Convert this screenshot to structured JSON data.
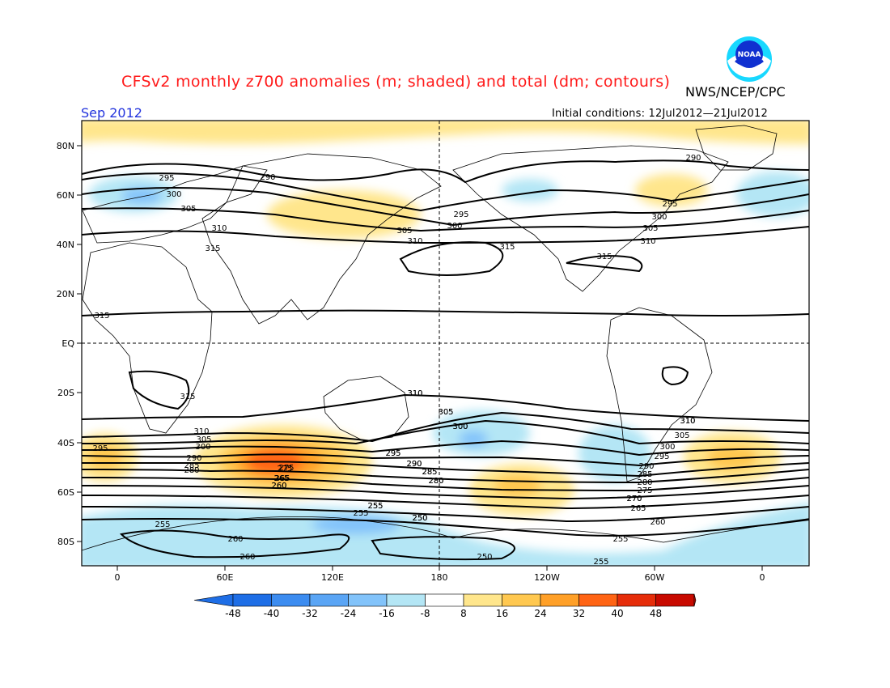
{
  "header": {
    "title": "CFSv2 monthly z700 anomalies (m; shaded) and total (dm; contours)",
    "agency": "NWS/NCEP/CPC",
    "month": "Sep 2012",
    "initial_conditions": "Initial conditions: 12Jul2012—21Jul2012",
    "logo_text": "NOAA"
  },
  "axes": {
    "lat_labels": [
      "80N",
      "60N",
      "40N",
      "20N",
      "EQ",
      "20S",
      "40S",
      "60S",
      "80S"
    ],
    "lon_labels": [
      "0",
      "60E",
      "120E",
      "180",
      "120W",
      "60W",
      "0"
    ]
  },
  "colorbar": {
    "labels": [
      "-48",
      "-40",
      "-32",
      "-24",
      "-16",
      "-8",
      "8",
      "16",
      "24",
      "32",
      "40",
      "48"
    ],
    "colors": [
      "#1e6ee6",
      "#3c8cf0",
      "#5aa5f5",
      "#82c3fa",
      "#b4e6f5",
      "#ffffff",
      "#ffe68c",
      "#ffc850",
      "#ffa028",
      "#ff6414",
      "#e62d0a",
      "#c80a00"
    ]
  },
  "contour_labels": {
    "north": [
      "295",
      "300",
      "305",
      "310",
      "315",
      "290",
      "295",
      "300",
      "305",
      "310",
      "315",
      "290",
      "295",
      "300",
      "305",
      "310",
      "315",
      "315"
    ],
    "south": [
      "315",
      "310",
      "310",
      "305",
      "300",
      "295",
      "290",
      "285",
      "280",
      "275",
      "270",
      "265",
      "260",
      "255",
      "250"
    ],
    "southern_west": [
      "295",
      "310",
      "305",
      "300",
      "290",
      "285",
      "280",
      "275",
      "265",
      "260",
      "255",
      "260",
      "260"
    ],
    "southern_central": [
      "310",
      "305",
      "300",
      "295",
      "290",
      "285",
      "280",
      "255",
      "255",
      "250",
      "250"
    ],
    "southern_east": [
      "310",
      "305",
      "300",
      "295",
      "290",
      "285",
      "280",
      "275",
      "270",
      "265",
      "260",
      "255",
      "255"
    ]
  }
}
